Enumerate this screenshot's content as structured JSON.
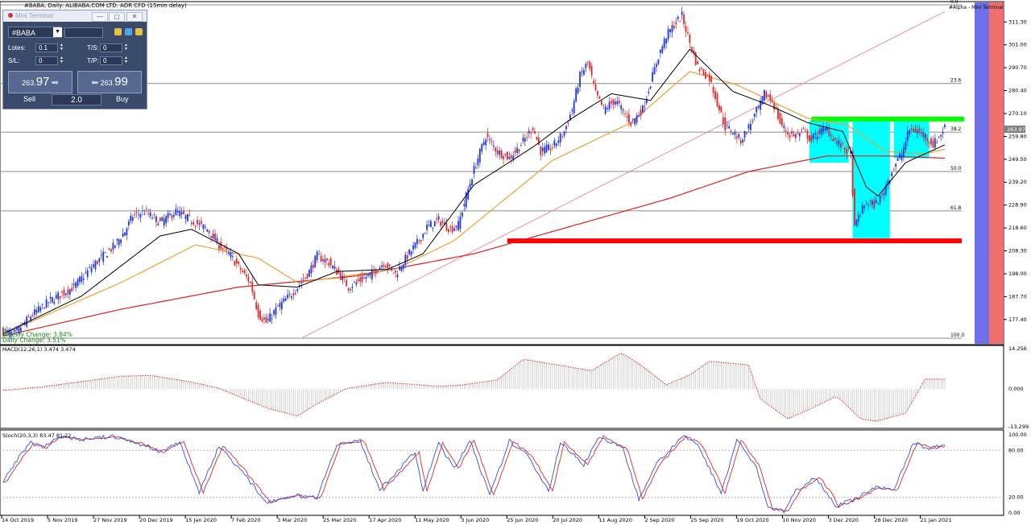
{
  "header": {
    "symbol_title": "#BABA, Daily:  ALIBABA.COM LTD. ADR CFD (15min delay)"
  },
  "mini_terminal": {
    "title": "Mini Terminal",
    "symbol": "#BABA",
    "lots_label": "Lotes:",
    "lots_value": "0.1",
    "ts_label": "T/S:",
    "ts_value": "0",
    "sl_label": "S/L:",
    "sl_value": "0",
    "tp_label": "T/P:",
    "tp_value": "0",
    "sell_price_small": "263.",
    "sell_price_big": "97",
    "buy_price_small": "263.",
    "buy_price_big": "99",
    "sell_label": "Sell",
    "buy_label": "Buy",
    "lot_display": "2.0",
    "minimize": "—",
    "restore": "▢",
    "close": "✕"
  },
  "right_label": "#Alpha - Mini Terminal",
  "change_labels": {
    "weekly": "Weekly Change: 3.84%",
    "daily": "Daily Change: 3.51%"
  },
  "chart_data": [
    {
      "type": "candlestick",
      "title": "#BABA, Daily:  ALIBABA.COM LTD. ADR CFD (15min delay)",
      "current_price": "263.97",
      "y_ticks": [
        "311.30",
        "301.00",
        "290.70",
        "280.40",
        "270.10",
        "259.80",
        "249.50",
        "239.20",
        "228.90",
        "218.60",
        "208.30",
        "198.00",
        "187.70",
        "177.40"
      ],
      "ylim": [
        169.0,
        319.0
      ],
      "x_ticks": [
        "14 Oct 2019",
        "5 Nov 2019",
        "27 Nov 2019",
        "20 Dec 2019",
        "15 Jan 2020",
        "7 Feb 2020",
        "3 Mar 2020",
        "25 Mar 2020",
        "17 Apr 2020",
        "11 May 2020",
        "3 Jun 2020",
        "25 Jun 2020",
        "20 Jul 2020",
        "11 Aug 2020",
        "2 Sep 2020",
        "25 Sep 2020",
        "19 Oct 2020",
        "10 Nov 2020",
        "3 Dec 2020",
        "28 Dec 2020",
        "21 Jan 2021"
      ],
      "fibonacci": [
        {
          "label": "0.0",
          "price": 319.0
        },
        {
          "label": "23.6",
          "price": 283.6
        },
        {
          "label": "38.2",
          "price": 261.7
        },
        {
          "label": "50.0",
          "price": 244.0
        },
        {
          "label": "61.8",
          "price": 226.3
        },
        {
          "label": "100.0",
          "price": 169.0
        }
      ],
      "horizontal_levels": [
        {
          "name": "support",
          "price": 212.8,
          "color": "#ff0000"
        },
        {
          "name": "resistance",
          "price": 267.6,
          "color": "#00ff00"
        }
      ],
      "close_anchors": [
        [
          0,
          172
        ],
        [
          6,
          171
        ],
        [
          14,
          179
        ],
        [
          24,
          186
        ],
        [
          36,
          192
        ],
        [
          46,
          202
        ],
        [
          56,
          210
        ],
        [
          62,
          217
        ],
        [
          66,
          224
        ],
        [
          72,
          226
        ],
        [
          80,
          221
        ],
        [
          88,
          226
        ],
        [
          96,
          222
        ],
        [
          104,
          218
        ],
        [
          110,
          211
        ],
        [
          116,
          206
        ],
        [
          120,
          201
        ],
        [
          126,
          194
        ],
        [
          130,
          180
        ],
        [
          134,
          176
        ],
        [
          140,
          183
        ],
        [
          146,
          188
        ],
        [
          150,
          192
        ],
        [
          156,
          199
        ],
        [
          160,
          206
        ],
        [
          166,
          203
        ],
        [
          172,
          197
        ],
        [
          176,
          192
        ],
        [
          182,
          195
        ],
        [
          188,
          198
        ],
        [
          194,
          203
        ],
        [
          200,
          198
        ],
        [
          206,
          206
        ],
        [
          212,
          213
        ],
        [
          216,
          219
        ],
        [
          222,
          222
        ],
        [
          228,
          218
        ],
        [
          232,
          220
        ],
        [
          236,
          233
        ],
        [
          240,
          245
        ],
        [
          246,
          260
        ],
        [
          252,
          253
        ],
        [
          258,
          250
        ],
        [
          264,
          256
        ],
        [
          270,
          264
        ],
        [
          274,
          253
        ],
        [
          280,
          255
        ],
        [
          286,
          262
        ],
        [
          290,
          272
        ],
        [
          294,
          287
        ],
        [
          298,
          293
        ],
        [
          302,
          279
        ],
        [
          306,
          272
        ],
        [
          312,
          276
        ],
        [
          316,
          271
        ],
        [
          320,
          266
        ],
        [
          326,
          272
        ],
        [
          330,
          284
        ],
        [
          334,
          296
        ],
        [
          338,
          305
        ],
        [
          342,
          310
        ],
        [
          346,
          314
        ],
        [
          350,
          302
        ],
        [
          354,
          291
        ],
        [
          360,
          286
        ],
        [
          364,
          275
        ],
        [
          368,
          264
        ],
        [
          372,
          262
        ],
        [
          376,
          258
        ],
        [
          380,
          264
        ],
        [
          384,
          271
        ],
        [
          386,
          274
        ],
        [
          388,
          279
        ],
        [
          392,
          276
        ],
        [
          396,
          266
        ],
        [
          400,
          261
        ],
        [
          404,
          260
        ],
        [
          408,
          262
        ],
        [
          412,
          258
        ],
        [
          416,
          262
        ],
        [
          420,
          263
        ],
        [
          424,
          258
        ],
        [
          428,
          255
        ],
        [
          432,
          252
        ],
        [
          434,
          218
        ],
        [
          436,
          224
        ],
        [
          440,
          230
        ],
        [
          444,
          229
        ],
        [
          448,
          233
        ],
        [
          450,
          238
        ],
        [
          454,
          246
        ],
        [
          458,
          252
        ],
        [
          462,
          263
        ],
        [
          466,
          262
        ],
        [
          470,
          260
        ],
        [
          474,
          256
        ],
        [
          478,
          261
        ],
        [
          480,
          264
        ]
      ],
      "sma_fast_anchors": [
        [
          0,
          171
        ],
        [
          40,
          188
        ],
        [
          80,
          215
        ],
        [
          96,
          218
        ],
        [
          120,
          207
        ],
        [
          130,
          193
        ],
        [
          150,
          192
        ],
        [
          170,
          199
        ],
        [
          196,
          200
        ],
        [
          214,
          207
        ],
        [
          240,
          238
        ],
        [
          270,
          255
        ],
        [
          290,
          268
        ],
        [
          310,
          279
        ],
        [
          330,
          276
        ],
        [
          350,
          299
        ],
        [
          372,
          280
        ],
        [
          390,
          274
        ],
        [
          410,
          266
        ],
        [
          428,
          262
        ],
        [
          440,
          237
        ],
        [
          446,
          233
        ],
        [
          460,
          248
        ],
        [
          480,
          256
        ]
      ],
      "sma_mid_anchors": [
        [
          0,
          171
        ],
        [
          60,
          194
        ],
        [
          98,
          211
        ],
        [
          130,
          205
        ],
        [
          150,
          194
        ],
        [
          200,
          200
        ],
        [
          230,
          213
        ],
        [
          280,
          249
        ],
        [
          320,
          266
        ],
        [
          350,
          289
        ],
        [
          374,
          283
        ],
        [
          410,
          268
        ],
        [
          430,
          265
        ],
        [
          450,
          253
        ],
        [
          470,
          252
        ],
        [
          480,
          254
        ]
      ],
      "sma_slow_anchors": [
        [
          0,
          170
        ],
        [
          60,
          182
        ],
        [
          120,
          192
        ],
        [
          180,
          197
        ],
        [
          240,
          207
        ],
        [
          300,
          222
        ],
        [
          340,
          232
        ],
        [
          380,
          244
        ],
        [
          420,
          251
        ],
        [
          450,
          251
        ],
        [
          480,
          250
        ]
      ],
      "trendline": {
        "from": [
          152,
          169
        ],
        "to": [
          480,
          316
        ]
      },
      "highlight_boxes": [
        {
          "from": [
            411,
            267
          ],
          "to": [
            431,
            248
          ],
          "color": "#00ffff"
        },
        {
          "from": [
            433,
            267
          ],
          "to": [
            452,
            214
          ],
          "color": "#00ffff"
        },
        {
          "from": [
            454,
            267
          ],
          "to": [
            472,
            250
          ],
          "color": "#00ffff"
        }
      ],
      "bands": [
        {
          "name": "blue",
          "color": "#6f6fe8"
        },
        {
          "name": "red",
          "color": "#ef6f6f"
        }
      ]
    },
    {
      "type": "bar",
      "title": "MACD(12,26,1) 3.474 3.474",
      "y_ticks": [
        "14.256",
        "0.000",
        "-13.299"
      ],
      "ylim": [
        -13.299,
        14.256
      ],
      "anchors": [
        [
          0,
          -0.5
        ],
        [
          20,
          0.8
        ],
        [
          40,
          2.6
        ],
        [
          60,
          4.5
        ],
        [
          75,
          4.8
        ],
        [
          95,
          2.6
        ],
        [
          110,
          0.3
        ],
        [
          120,
          -2.6
        ],
        [
          135,
          -6.8
        ],
        [
          150,
          -9.5
        ],
        [
          160,
          -5.2
        ],
        [
          175,
          0.2
        ],
        [
          195,
          2.3
        ],
        [
          212,
          1.5
        ],
        [
          222,
          0.9
        ],
        [
          235,
          1.5
        ],
        [
          252,
          3.3
        ],
        [
          265,
          10.5
        ],
        [
          280,
          8.8
        ],
        [
          300,
          6.5
        ],
        [
          315,
          12.8
        ],
        [
          325,
          8.5
        ],
        [
          338,
          1.5
        ],
        [
          350,
          5.0
        ],
        [
          360,
          9.8
        ],
        [
          380,
          8.5
        ],
        [
          386,
          -3.5
        ],
        [
          400,
          -10.5
        ],
        [
          412,
          -6.8
        ],
        [
          425,
          -2.5
        ],
        [
          437,
          -10.5
        ],
        [
          445,
          -11.4
        ],
        [
          460,
          -8.5
        ],
        [
          470,
          3.5
        ],
        [
          480,
          3.5
        ]
      ]
    },
    {
      "type": "line",
      "title": "Stoch(20,3,3) 83.47 81.22",
      "y_ticks": [
        "100.00",
        "80.00",
        "20.00",
        "0.00"
      ],
      "ylim": [
        0,
        100
      ],
      "anchors": [
        [
          0,
          40
        ],
        [
          8,
          72
        ],
        [
          14,
          90
        ],
        [
          20,
          84
        ],
        [
          28,
          98
        ],
        [
          40,
          94
        ],
        [
          56,
          98
        ],
        [
          70,
          88
        ],
        [
          80,
          78
        ],
        [
          90,
          91
        ],
        [
          100,
          26
        ],
        [
          110,
          86
        ],
        [
          120,
          58
        ],
        [
          134,
          14
        ],
        [
          148,
          22
        ],
        [
          160,
          20
        ],
        [
          170,
          88
        ],
        [
          182,
          92
        ],
        [
          192,
          30
        ],
        [
          210,
          78
        ],
        [
          214,
          28
        ],
        [
          222,
          90
        ],
        [
          230,
          56
        ],
        [
          238,
          94
        ],
        [
          248,
          22
        ],
        [
          258,
          92
        ],
        [
          268,
          72
        ],
        [
          278,
          28
        ],
        [
          284,
          90
        ],
        [
          296,
          62
        ],
        [
          304,
          98
        ],
        [
          316,
          82
        ],
        [
          324,
          18
        ],
        [
          332,
          60
        ],
        [
          346,
          98
        ],
        [
          354,
          88
        ],
        [
          366,
          26
        ],
        [
          374,
          94
        ],
        [
          384,
          58
        ],
        [
          390,
          6
        ],
        [
          398,
          2
        ],
        [
          404,
          28
        ],
        [
          414,
          46
        ],
        [
          420,
          26
        ],
        [
          424,
          8
        ],
        [
          436,
          20
        ],
        [
          444,
          32
        ],
        [
          454,
          30
        ],
        [
          464,
          90
        ],
        [
          472,
          82
        ],
        [
          480,
          88
        ]
      ]
    }
  ]
}
